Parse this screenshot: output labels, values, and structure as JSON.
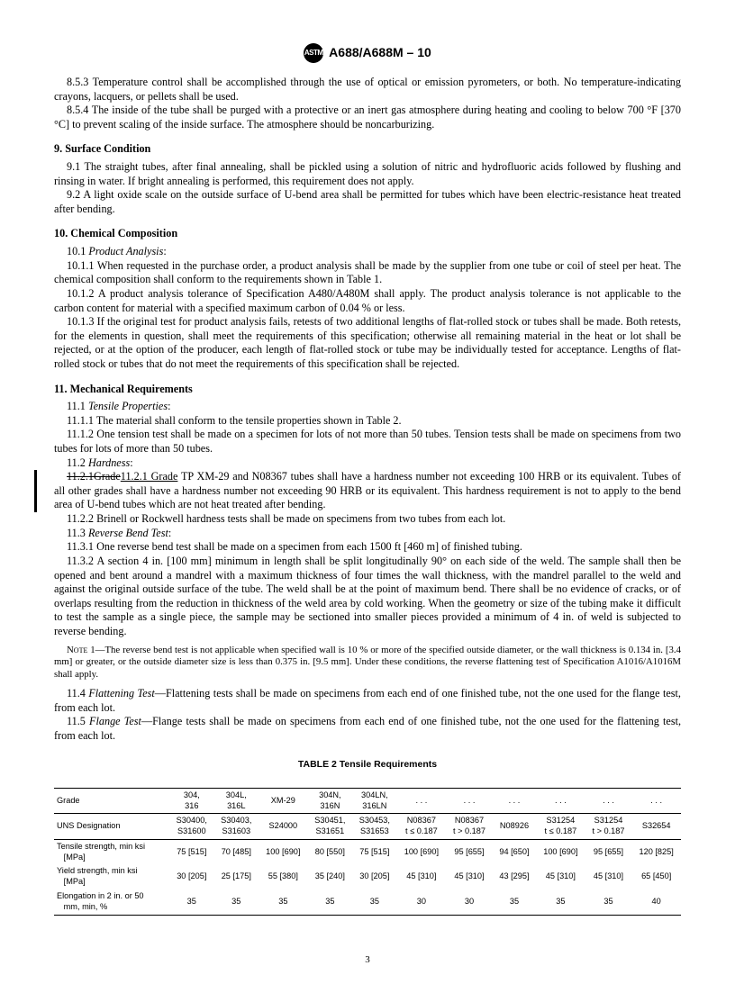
{
  "header": {
    "logo_text": "ASTM",
    "doc_id": "A688/A688M – 10"
  },
  "paras": {
    "p853": "8.5.3 Temperature control shall be accomplished through the use of optical or emission pyrometers, or both. No temperature-indicating crayons, lacquers, or pellets shall be used.",
    "p854": "8.5.4 The inside of the tube shall be purged with a protective or an inert gas atmosphere during heating and cooling to below 700 °F [370 °C] to prevent scaling of the inside surface. The atmosphere should be noncarburizing.",
    "s9": "9. Surface Condition",
    "p91": "9.1 The straight tubes, after final annealing, shall be pickled using a solution of nitric and hydrofluoric acids followed by flushing and rinsing in water. If bright annealing is performed, this requirement does not apply.",
    "p92": "9.2 A light oxide scale on the outside surface of U-bend area shall be permitted for tubes which have been electric-resistance heat treated after bending.",
    "s10": "10. Chemical Composition",
    "p101_label": "10.1 ",
    "p101_title": "Product Analysis",
    "p1011": "10.1.1 When requested in the purchase order, a product analysis shall be made by the supplier from one tube or coil of steel per heat. The chemical composition shall conform to the requirements shown in Table 1.",
    "p1012": "10.1.2 A product analysis tolerance of Specification A480/A480M shall apply. The product analysis tolerance is not applicable to the carbon content for material with a specified maximum carbon of 0.04 % or less.",
    "p1013": "10.1.3 If the original test for product analysis fails, retests of two additional lengths of flat-rolled stock or tubes shall be made. Both retests, for the elements in question, shall meet the requirements of this specification; otherwise all remaining material in the heat or lot shall be rejected, or at the option of the producer, each length of flat-rolled stock or tube may be individually tested for acceptance. Lengths of flat-rolled stock or tubes that do not meet the requirements of this specification shall be rejected.",
    "s11": "11. Mechanical Requirements",
    "p111_label": "11.1 ",
    "p111_title": "Tensile Properties",
    "p1111": "11.1.1 The material shall conform to the tensile properties shown in Table 2.",
    "p1112": "11.1.2 One tension test shall be made on a specimen for lots of not more than 50 tubes. Tension tests shall be made on specimens from two tubes for lots of more than 50 tubes.",
    "p112_label": "11.2 ",
    "p112_title": "Hardness",
    "p1121_strike": "11.2.1Grade",
    "p1121_underline": "11.2.1 Grade",
    "p1121_rest": " TP XM-29 and N08367 tubes shall have a hardness number not exceeding 100 HRB or its equivalent. Tubes of all other grades shall have a hardness number not exceeding 90 HRB or its equivalent. This hardness requirement is not to apply to the bend area of U-bend tubes which are not heat treated after bending.",
    "p1122": "11.2.2 Brinell or Rockwell hardness tests shall be made on specimens from two tubes from each lot.",
    "p113_label": "11.3 ",
    "p113_title": "Reverse Bend Test",
    "p1131": "11.3.1 One reverse bend test shall be made on a specimen from each 1500 ft [460 m] of finished tubing.",
    "p1132": "11.3.2 A section 4 in. [100 mm] minimum in length shall be split longitudinally 90° on each side of the weld. The sample shall then be opened and bent around a mandrel with a maximum thickness of four times the wall thickness, with the mandrel parallel to the weld and against the original outside surface of the tube. The weld shall be at the point of maximum bend. There shall be no evidence of cracks, or of overlaps resulting from the reduction in thickness of the weld area by cold working. When the geometry or size of the tubing make it difficult to test the sample as a single piece, the sample may be sectioned into smaller pieces provided a minimum of 4 in. of weld is subjected to reverse bending.",
    "note1_label": "Note 1—",
    "note1": "The reverse bend test is not applicable when specified wall is 10 % or more of the specified outside diameter, or the wall thickness is 0.134 in. [3.4 mm] or greater, or the outside diameter size is less than 0.375 in. [9.5 mm]. Under these conditions, the reverse flattening test of Specification A1016/A1016M shall apply.",
    "p114_label": "11.4 ",
    "p114_title": "Flattening Test",
    "p114_rest": "—Flattening tests shall be made on specimens from each end of one finished tube, not the one used for the flange test, from each lot.",
    "p115_label": "11.5 ",
    "p115_title": "Flange Test",
    "p115_rest": "—Flange tests shall be made on specimens from each end of one finished tube, not the one used for the flattening test, from each lot."
  },
  "table": {
    "title": "TABLE 2   Tensile Requirements",
    "header_row1": [
      "Grade",
      "304, 316",
      "304L, 316L",
      "XM-29",
      "304N, 316N",
      "304LN, 316LN",
      ". . .",
      ". . .",
      ". . .",
      ". . .",
      ". . .",
      ". . ."
    ],
    "header_row2": [
      "UNS Designation",
      "S30400, S31600",
      "S30403, S31603",
      "S24000",
      "S30451, S31651",
      "S30453, S31653",
      "N08367 t ≤ 0.187",
      "N08367 t > 0.187",
      "N08926",
      "S31254 t ≤ 0.187",
      "S31254 t > 0.187",
      "S32654"
    ],
    "data_rows": [
      [
        "Tensile strength, min ksi [MPa]",
        "75 [515]",
        "70 [485]",
        "100 [690]",
        "80 [550]",
        "75 [515]",
        "100 [690]",
        "95 [655]",
        "94 [650]",
        "100 [690]",
        "95 [655]",
        "120 [825]"
      ],
      [
        "Yield strength, min ksi [MPa]",
        "30 [205]",
        "25 [175]",
        "55 [380]",
        "35 [240]",
        "30 [205]",
        "45 [310]",
        "45 [310]",
        "43 [295]",
        "45 [310]",
        "45 [310]",
        "65 [450]"
      ],
      [
        "Elongation in 2 in. or 50 mm, min, %",
        "35",
        "35",
        "35",
        "35",
        "35",
        "30",
        "30",
        "35",
        "35",
        "35",
        "40"
      ]
    ]
  },
  "page_number": "3"
}
